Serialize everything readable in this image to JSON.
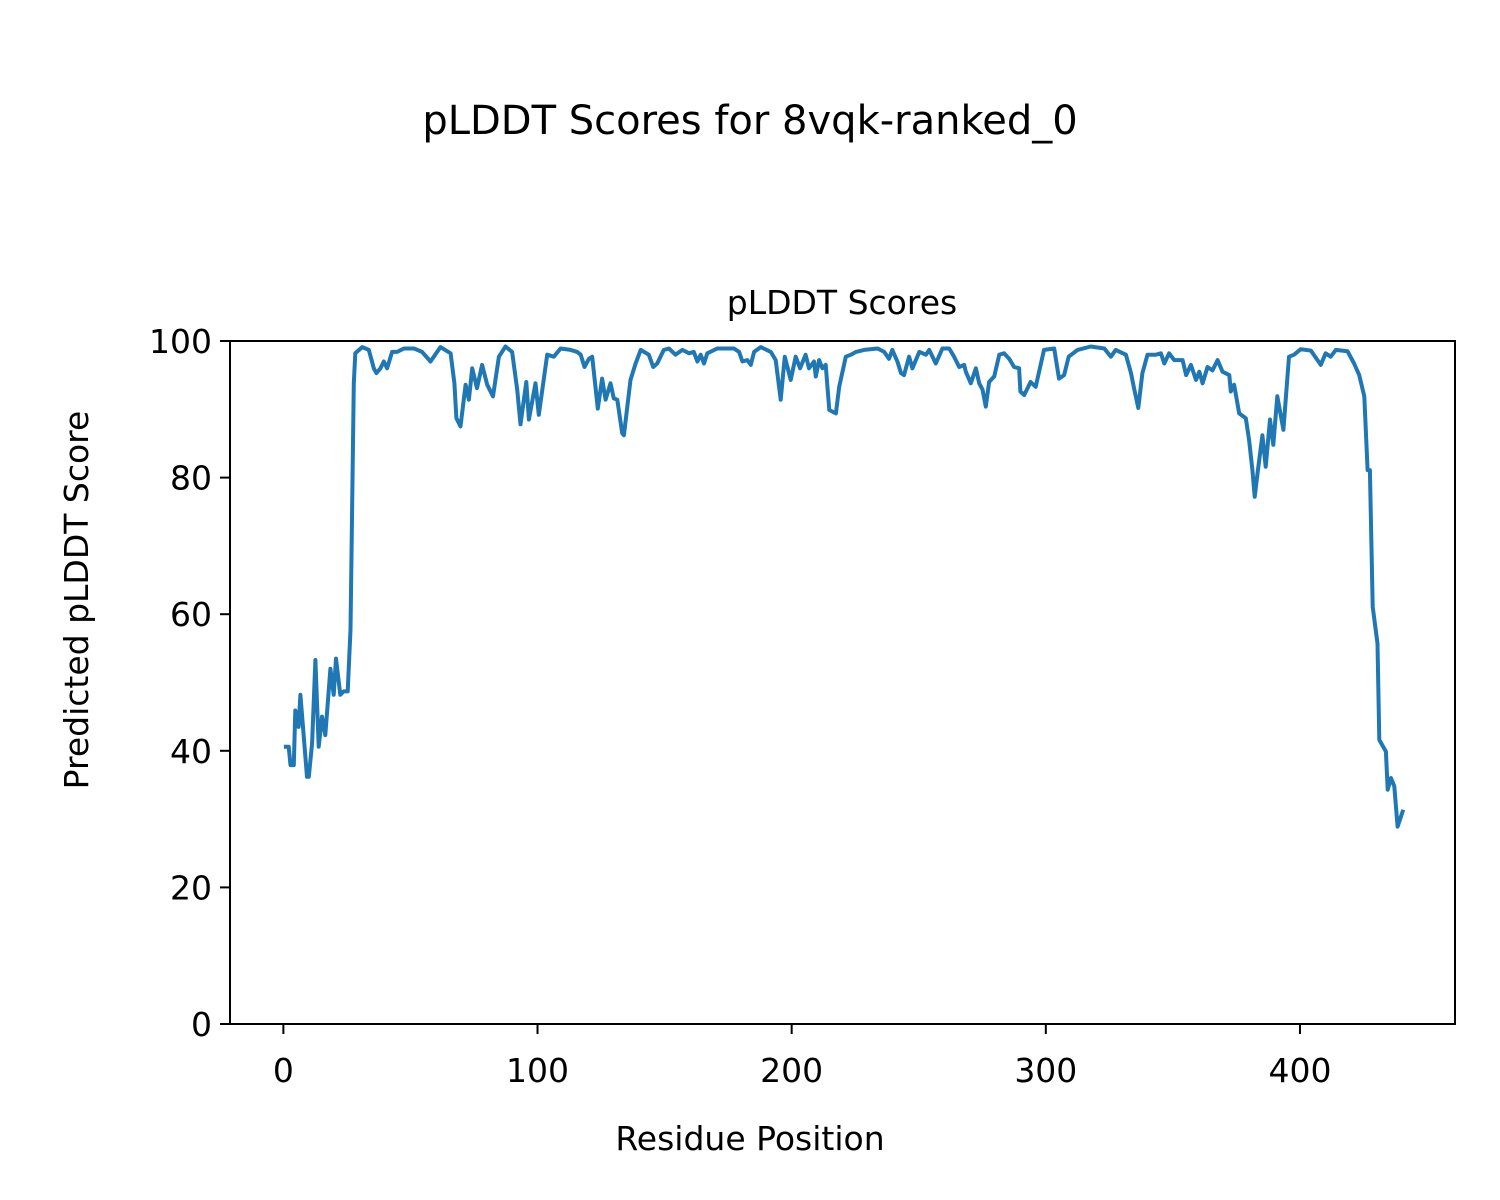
{
  "chart_data": {
    "type": "line",
    "suptitle": "pLDDT Scores for 8vqk-ranked_0",
    "title": "pLDDT Scores",
    "xlabel": "Residue Position",
    "ylabel": "Predicted pLDDT Score",
    "xlim": [
      -21,
      461
    ],
    "ylim": [
      0,
      100
    ],
    "xticks": [
      0,
      100,
      200,
      300,
      400
    ],
    "xtick_labels": [
      "0",
      "100",
      "200",
      "300",
      "400"
    ],
    "yticks": [
      0,
      20,
      40,
      60,
      80,
      100
    ],
    "ytick_labels": [
      "0",
      "20",
      "40",
      "60",
      "80",
      "100"
    ],
    "grid": false,
    "series": [
      {
        "name": "pLDDT",
        "color": "#1f77b4",
        "x": [
          1,
          2.1,
          2.8,
          4.1,
          4.7,
          6,
          6.7,
          9.3,
          10,
          11.3,
          12.6,
          13.9,
          15.2,
          16.5,
          18.5,
          19.8,
          20.7,
          22.4,
          23.7,
          25.3,
          26.4,
          27.7,
          28.3,
          31,
          33.6,
          35.6,
          36.6,
          38.2,
          39.5,
          40.8,
          42.8,
          44.8,
          47.4,
          51.4,
          54.6,
          57.9,
          59.2,
          61.8,
          65.8,
          67.3,
          68.1,
          69.7,
          71.7,
          73,
          74.3,
          76.2,
          78.2,
          80.2,
          82.5,
          84.8,
          87.4,
          90,
          92,
          93.3,
          95.6,
          96.6,
          99.2,
          100.5,
          103.8,
          106.4,
          109.1,
          113,
          115.6,
          117,
          118.5,
          120.2,
          121.5,
          123.7,
          125.4,
          126.8,
          128.7,
          130,
          131.4,
          133.3,
          134,
          136.6,
          138.6,
          140.6,
          143.8,
          145.5,
          147.1,
          149.7,
          151.7,
          154.3,
          157,
          159.6,
          161.5,
          162.9,
          164.2,
          165.5,
          166.8,
          170.7,
          177.3,
          179.3,
          180.6,
          182.6,
          183.9,
          185.2,
          187.8,
          191.8,
          193.7,
          195.7,
          197.3,
          199.6,
          201.6,
          203.3,
          205.5,
          206.8,
          208.8,
          209.5,
          210.8,
          212.1,
          213.4,
          214.8,
          217.4,
          218.7,
          221.3,
          223.3,
          225.3,
          228.5,
          233.8,
          236.4,
          238.3,
          239.6,
          241.6,
          243,
          244.2,
          246.2,
          247.5,
          250.2,
          252.8,
          254.1,
          256.7,
          259.3,
          262,
          263.9,
          265.9,
          267.9,
          268.5,
          270.5,
          272.5,
          273.8,
          275.1,
          276.4,
          277.7,
          279.7,
          281.7,
          283.6,
          285.6,
          287.5,
          289.5,
          290,
          291.5,
          294,
          296,
          299.3,
          303.3,
          305.2,
          307.2,
          309,
          312.5,
          317.7,
          323,
          325.6,
          327.5,
          331.5,
          333.5,
          334.8,
          336.4,
          338,
          340,
          343.3,
          345.3,
          346.6,
          348.5,
          350.5,
          353.8,
          355.2,
          357.1,
          359.1,
          360.4,
          361.7,
          363.6,
          365.6,
          367.6,
          369.5,
          372.2,
          372.8,
          374.1,
          376.1,
          378.7,
          380,
          381.3,
          382.2,
          383.3,
          385.2,
          386.5,
          388.2,
          389.5,
          391.1,
          393.5,
          395.7,
          397.7,
          400.3,
          404.3,
          408.2,
          410.1,
          412.1,
          414.1,
          418.7,
          421.3,
          423.3,
          425.3,
          426.6,
          427.5,
          428.6,
          430.5,
          431.2,
          433.8,
          434.5,
          435.8,
          437.1,
          438.4,
          440.4
        ],
        "y": [
          40.6,
          40.6,
          37.9,
          37.9,
          45.9,
          43.5,
          48.2,
          36.2,
          36.2,
          41.1,
          53.3,
          40.6,
          45,
          42.3,
          52,
          48.2,
          53.5,
          48.2,
          48.7,
          48.7,
          57.7,
          93.8,
          98.2,
          99.1,
          98.7,
          96,
          95.3,
          96,
          97,
          96,
          98.4,
          98.4,
          98.9,
          98.9,
          98.4,
          97,
          97.7,
          99.1,
          98.2,
          93.8,
          88.7,
          87.5,
          93.6,
          91.4,
          96,
          93.1,
          96.5,
          93.6,
          91.9,
          97.7,
          99.2,
          98.4,
          92.9,
          87.8,
          94,
          88.5,
          93.8,
          89.2,
          98,
          97.7,
          98.9,
          98.7,
          98.4,
          98,
          96.2,
          97.4,
          97.7,
          90.1,
          94.5,
          91.4,
          93.8,
          91.6,
          91.4,
          86.5,
          86.2,
          94.3,
          96.7,
          98.7,
          98,
          96.2,
          96.7,
          98.7,
          98.9,
          98,
          98.7,
          98.2,
          98.4,
          97,
          98,
          96.7,
          98.2,
          98.9,
          98.9,
          98.4,
          97,
          97.2,
          96.5,
          98.4,
          99.1,
          98.4,
          97.2,
          91.4,
          97.7,
          94.3,
          97.7,
          96,
          98,
          96,
          97,
          94.8,
          97.2,
          96,
          96.5,
          89.9,
          89.4,
          93.3,
          97.7,
          98,
          98.4,
          98.7,
          98.9,
          98.4,
          97.4,
          98.7,
          97,
          95.3,
          95,
          97.7,
          96,
          98.4,
          98,
          98.7,
          96.7,
          98.9,
          98.9,
          97.7,
          96.2,
          96.5,
          95.5,
          93.8,
          96,
          93.8,
          92.9,
          90.4,
          94,
          94.8,
          98,
          98.2,
          97.4,
          96.2,
          96,
          92.6,
          92.1,
          94,
          93.3,
          98.7,
          98.9,
          94.5,
          95,
          97.7,
          98.7,
          99.2,
          98.9,
          97.7,
          98.7,
          98,
          95.3,
          92.9,
          90.2,
          95.3,
          98,
          98,
          98.2,
          96.7,
          98.2,
          97.2,
          97.2,
          95,
          96.5,
          94.3,
          95.5,
          93.8,
          96.2,
          95.7,
          97.2,
          95.5,
          95,
          92.6,
          93.6,
          89.4,
          88.7,
          85.5,
          81.1,
          77.2,
          80.6,
          86.2,
          81.6,
          88.5,
          84.8,
          91.9,
          87,
          97.7,
          98,
          98.8,
          98.6,
          96.5,
          98.2,
          97.7,
          98.7,
          98.5,
          96.7,
          95,
          91.9,
          81.1,
          81.1,
          61.1,
          55.7,
          41.6,
          39.9,
          34.3,
          36,
          34.8,
          28.9,
          31.1
        ]
      }
    ]
  }
}
